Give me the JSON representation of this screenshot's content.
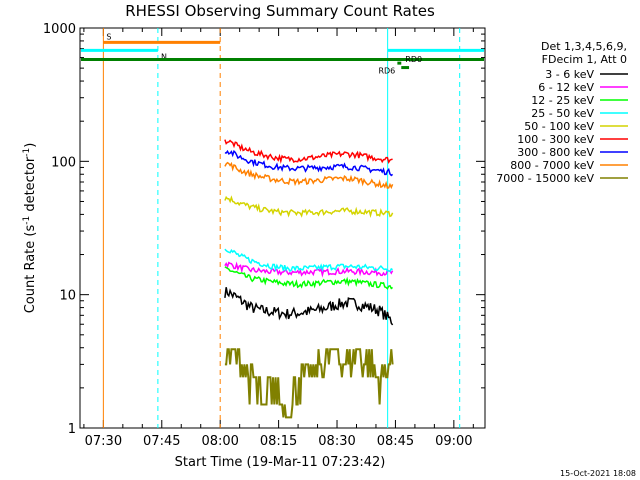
{
  "chart_data": {
    "type": "line",
    "title": "RHESSI Observing Summary Count Rates",
    "xlabel": "Start Time (19-Mar-11 07:23:42)",
    "ylabel_base": "Count Rate (s",
    "ylabel_sup1": "-1",
    "ylabel_mid": " detector",
    "ylabel_sup2": "-1",
    "ylabel_end": ")",
    "y_scale": "log",
    "ylim": [
      1,
      1000
    ],
    "xlim_minutes": [
      -6,
      98
    ],
    "x_ticks": [
      {
        "minute": 0,
        "label": "07:30"
      },
      {
        "minute": 15,
        "label": "07:45"
      },
      {
        "minute": 30,
        "label": "08:00"
      },
      {
        "minute": 45,
        "label": "08:15"
      },
      {
        "minute": 60,
        "label": "08:30"
      },
      {
        "minute": 75,
        "label": "08:45"
      },
      {
        "minute": 90,
        "label": "09:00"
      }
    ],
    "y_ticks": [
      {
        "value": 1,
        "label": "1"
      },
      {
        "value": 10,
        "label": "10"
      },
      {
        "value": 100,
        "label": "100"
      },
      {
        "value": 1000,
        "label": "1000"
      }
    ],
    "legend_header": [
      "Det 1,3,4,5,6,9,",
      "FDecim 1, Att 0"
    ],
    "series": [
      {
        "name": "3 - 6 keV",
        "color": "#000000",
        "values": [
          10.5,
          9.2,
          8.0,
          7.6,
          7.4,
          7.2,
          7.3,
          7.5,
          7.8,
          8.3,
          8.7,
          8.6,
          8.1,
          7.6,
          6.2
        ]
      },
      {
        "name": "6 - 12 keV",
        "color": "#ff00ff",
        "values": [
          17.0,
          16.0,
          15.3,
          15.0,
          14.8,
          14.7,
          14.7,
          14.8,
          14.8,
          14.9,
          15.0,
          14.9,
          14.8,
          14.7,
          14.6
        ]
      },
      {
        "name": "12 - 25 keV",
        "color": "#00ff00",
        "values": [
          15.5,
          14.2,
          13.2,
          12.8,
          12.4,
          12.1,
          12.0,
          12.1,
          12.3,
          12.5,
          12.6,
          12.4,
          12.1,
          11.8,
          11.5
        ]
      },
      {
        "name": "25 - 50 keV",
        "color": "#00ffff",
        "values": [
          22.0,
          19.5,
          18.0,
          17.0,
          16.2,
          15.8,
          15.7,
          15.8,
          16.0,
          16.2,
          16.3,
          16.2,
          16.0,
          15.8,
          15.6
        ]
      },
      {
        "name": "50 - 100 keV",
        "color": "#d4d400",
        "values": [
          53.0,
          48.5,
          45.5,
          43.5,
          42.0,
          41.3,
          41.0,
          41.2,
          41.6,
          42.2,
          42.5,
          42.2,
          41.6,
          41.0,
          40.6
        ]
      },
      {
        "name": "100 - 300 keV",
        "color": "#ff0000",
        "values": [
          142.0,
          128.0,
          118.0,
          112.0,
          107.0,
          104.0,
          104.0,
          106.0,
          109.0,
          112.0,
          114.0,
          112.0,
          108.0,
          105.0,
          102.0
        ]
      },
      {
        "name": "300 - 800 keV",
        "color": "#0000ff",
        "values": [
          120.0,
          108.0,
          100.0,
          95.0,
          91.0,
          89.0,
          88.5,
          89.0,
          90.0,
          91.0,
          91.5,
          90.0,
          87.5,
          85.0,
          82.0
        ]
      },
      {
        "name": "800 - 7000 keV",
        "color": "#ff8000",
        "values": [
          96.0,
          86.0,
          80.0,
          76.0,
          73.0,
          71.0,
          70.5,
          71.0,
          72.5,
          74.0,
          74.5,
          73.0,
          70.0,
          67.0,
          64.0
        ]
      },
      {
        "name": "7000 - 15000 keV",
        "color": "#808000",
        "values": [
          3.9,
          3.0,
          2.4,
          1.5,
          2.0,
          1.2,
          2.4,
          2.4,
          3.0,
          3.9,
          3.0,
          3.9,
          3.0,
          2.4,
          3.0
        ]
      }
    ],
    "series_x_minutes": [
      32,
      35,
      38,
      41,
      44,
      47,
      50,
      53,
      56,
      59,
      62,
      65,
      68,
      71,
      74.5
    ],
    "vertical_lines": [
      {
        "minute": 0,
        "color": "#ff8000",
        "dashed": false
      },
      {
        "minute": 30,
        "color": "#ff8000",
        "dashed": true
      },
      {
        "minute": 14,
        "color": "#00ffff",
        "dashed": true
      },
      {
        "minute": 73,
        "color": "#00ffff",
        "dashed": false
      },
      {
        "minute": 91.5,
        "color": "#00ffff",
        "dashed": true
      }
    ],
    "flag_bars": [
      {
        "label": "S",
        "color": "#ff8000",
        "start": 0,
        "end": 30,
        "value": 780
      },
      {
        "label": "N",
        "color": "#00ffff",
        "start": -6,
        "end": 14,
        "value": 680
      },
      {
        "label": "",
        "color": "#00ffff",
        "start": 73,
        "end": 98,
        "value": 680
      },
      {
        "label": "",
        "color": "#008000",
        "start": -6,
        "end": 98,
        "value": 580
      },
      {
        "label": "RD0",
        "color": "#008000",
        "start": 75.5,
        "end": 76.5,
        "value": 545
      },
      {
        "label": "RD6",
        "color": "#008000",
        "start": 76.5,
        "end": 78.5,
        "value": 505
      }
    ],
    "footer_stamp": "15-Oct-2021 18:08"
  }
}
